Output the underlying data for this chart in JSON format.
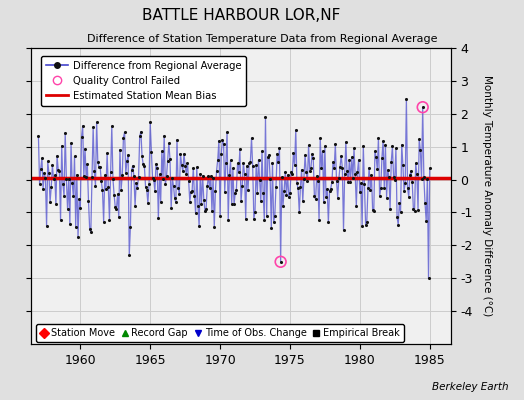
{
  "title": "BATTLE HARBOUR LOR,NF",
  "subtitle": "Difference of Station Temperature Data from Regional Average",
  "ylabel": "Monthly Temperature Anomaly Difference (°C)",
  "xlabel_credit": "Berkeley Earth",
  "ylim": [
    -5,
    4
  ],
  "yticks_right": [
    -4,
    -3,
    -2,
    -1,
    0,
    1,
    2,
    3,
    4
  ],
  "yticks_left": [
    -4,
    -3,
    -2,
    -1,
    0,
    1,
    2,
    3,
    4
  ],
  "xlim": [
    1956.5,
    1986.5
  ],
  "xticks": [
    1960,
    1965,
    1970,
    1975,
    1980,
    1985
  ],
  "bias": 0.05,
  "background_color": "#e0e0e0",
  "plot_bg_color": "#f0f0f0",
  "line_color": "#4444cc",
  "line_alpha": 0.7,
  "bias_color": "#dd0000",
  "dot_color": "#111111",
  "qc_color_face": "none",
  "qc_color_edge": "#ff44aa",
  "grid_color": "#cccccc",
  "seed": 7
}
